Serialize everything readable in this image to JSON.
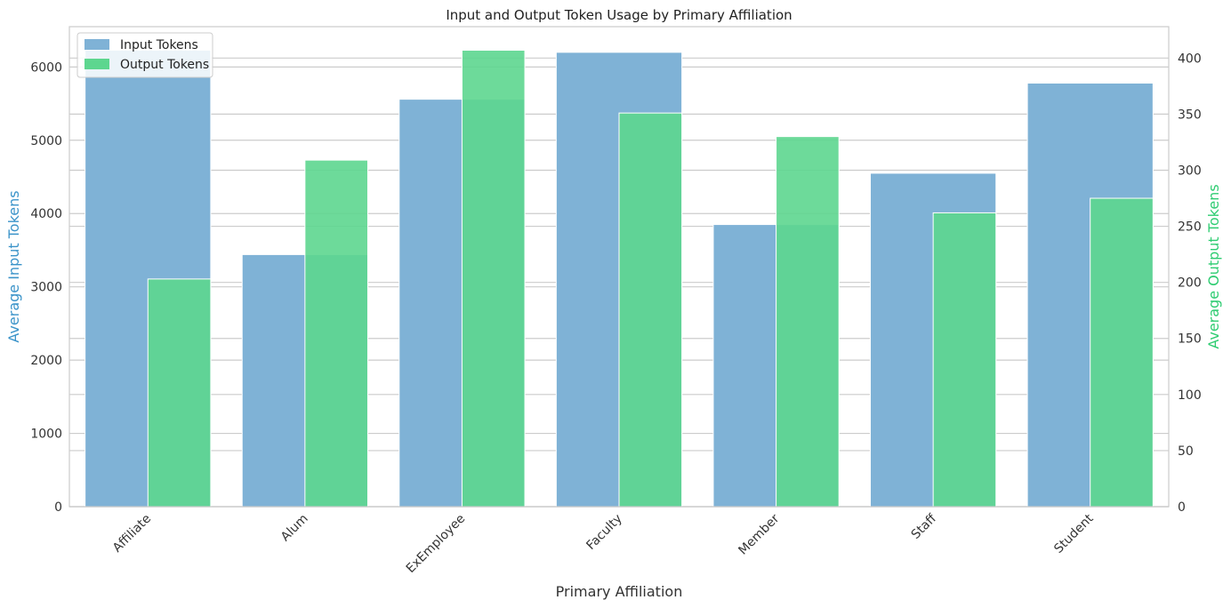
{
  "chart_data": {
    "type": "bar",
    "title": "Input and Output Token Usage by Primary Affiliation",
    "xlabel": "Primary Affiliation",
    "ylabel_left": "Average Input Tokens",
    "ylabel_right": "Average Output Tokens",
    "categories": [
      "Affiliate",
      "Alum",
      "ExEmployee",
      "Faculty",
      "Member",
      "Staff",
      "Student"
    ],
    "series": [
      {
        "name": "Input Tokens",
        "axis": "left",
        "color": "#7fb2d6",
        "values": [
          6230,
          3440,
          5560,
          6200,
          3850,
          4550,
          5780
        ]
      },
      {
        "name": "Output Tokens",
        "axis": "right",
        "color": "#5dd68f",
        "values": [
          203,
          309,
          407,
          351,
          330,
          262,
          275
        ]
      }
    ],
    "ylim_left": [
      0,
      6550
    ],
    "ylim_right": [
      0,
      428
    ],
    "yticks_left": [
      0,
      1000,
      2000,
      3000,
      4000,
      5000,
      6000
    ],
    "yticks_right": [
      0,
      50,
      100,
      150,
      200,
      250,
      300,
      350,
      400
    ],
    "legend_position": "top-left",
    "left_axis_color": "#3a93c9",
    "right_axis_color": "#2ecc71",
    "grid": true
  }
}
